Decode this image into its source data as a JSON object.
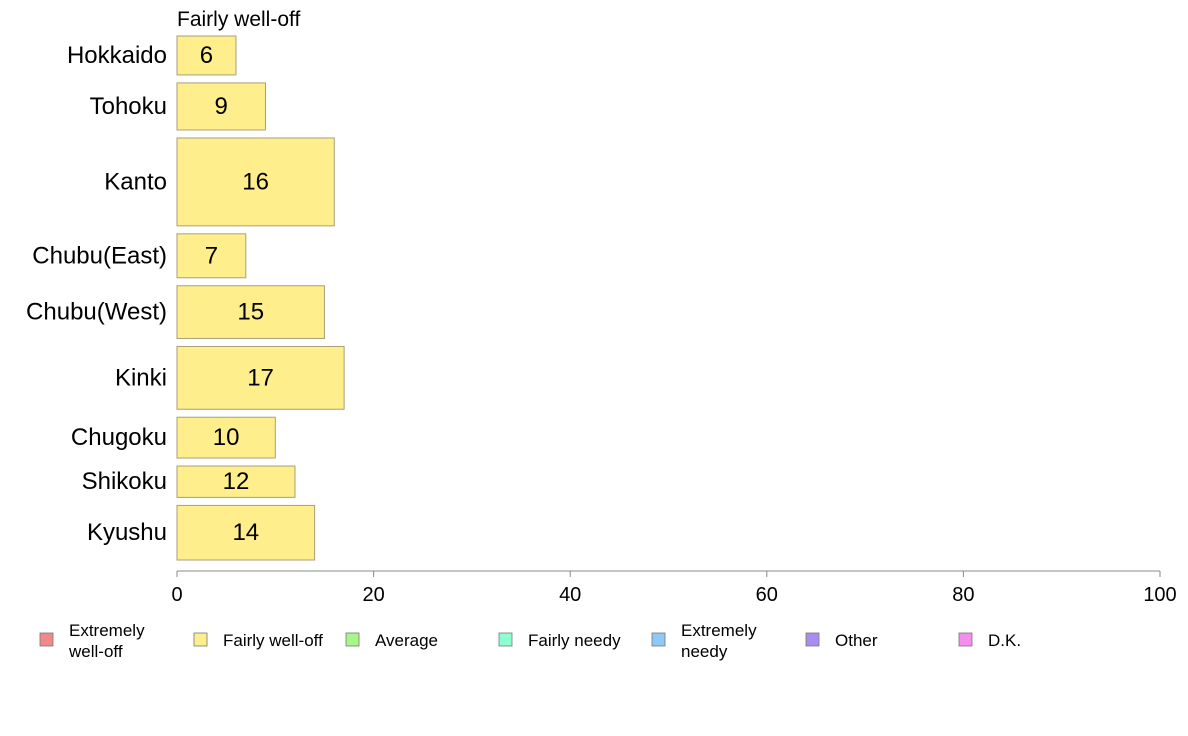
{
  "chart_data": {
    "type": "bar",
    "orientation": "horizontal",
    "title": "Fairly well-off",
    "categories": [
      "Hokkaido",
      "Tohoku",
      "Kanto",
      "Chubu(East)",
      "Chubu(West)",
      "Kinki",
      "Chugoku",
      "Shikoku",
      "Kyushu"
    ],
    "values": [
      6,
      9,
      16,
      7,
      15,
      17,
      10,
      12,
      14
    ],
    "bar_widths_relative": [
      0.62,
      0.75,
      1.4,
      0.7,
      0.84,
      1.0,
      0.65,
      0.5,
      0.87
    ],
    "xlim": [
      0,
      100
    ],
    "xticks": [
      0,
      20,
      40,
      60,
      80,
      100
    ],
    "grid": false,
    "legend_position": "bottom",
    "legend": [
      {
        "label": "Extremely\nwell-off",
        "color": "#f08a8a"
      },
      {
        "label": "Fairly well-off",
        "color": "#ffee8c"
      },
      {
        "label": "Average",
        "color": "#a8f58a"
      },
      {
        "label": "Fairly needy",
        "color": "#8cffd0"
      },
      {
        "label": "Extremely\nneedy",
        "color": "#8ccaf5"
      },
      {
        "label": "Other",
        "color": "#a88cf0"
      },
      {
        "label": "D.K.",
        "color": "#f58cf0"
      }
    ],
    "bar_color": "#ffee8c"
  }
}
